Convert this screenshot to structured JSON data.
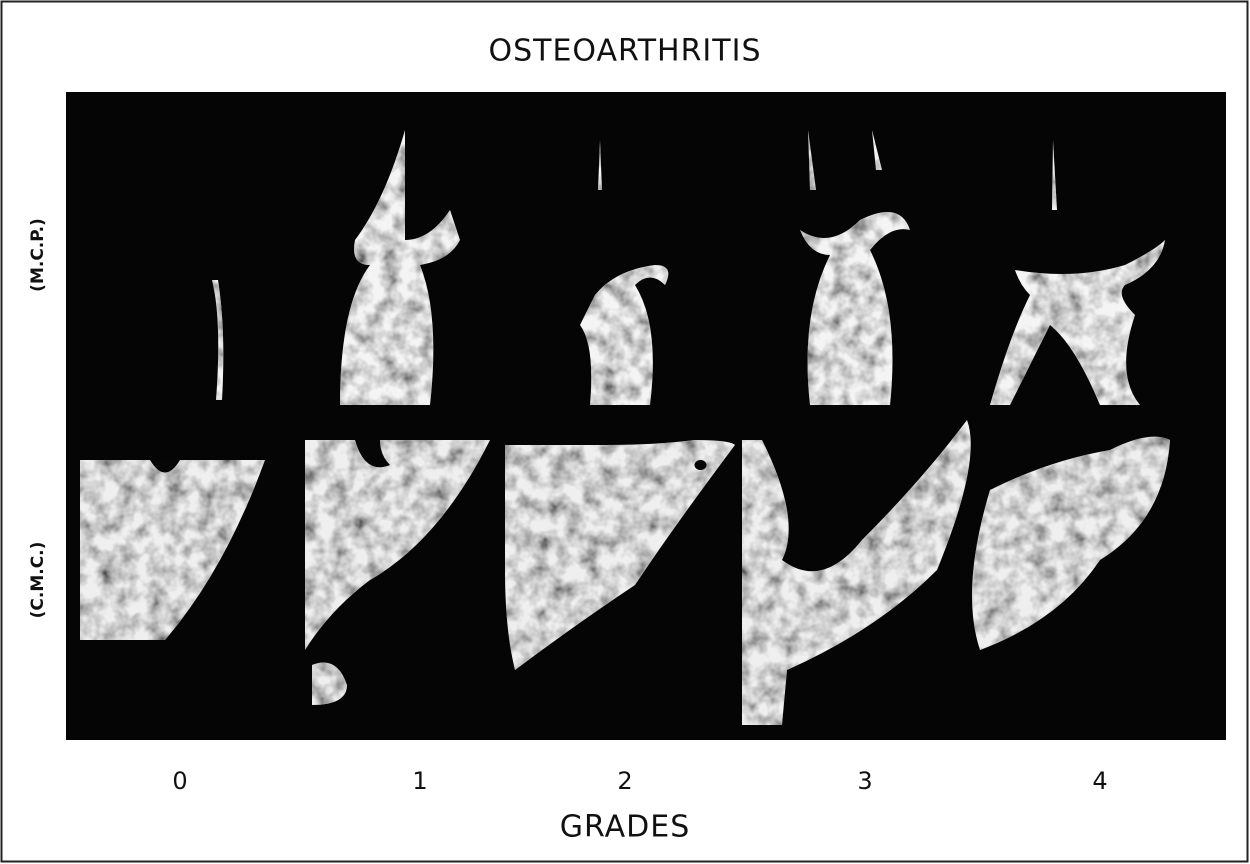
{
  "title": "OSTEOARTHRITIS",
  "row_labels": [
    "(M.C.P.)",
    "(C.M.C.)"
  ],
  "grades": [
    "0",
    "1",
    "2",
    "3",
    "4"
  ],
  "x_label": "GRADES"
}
